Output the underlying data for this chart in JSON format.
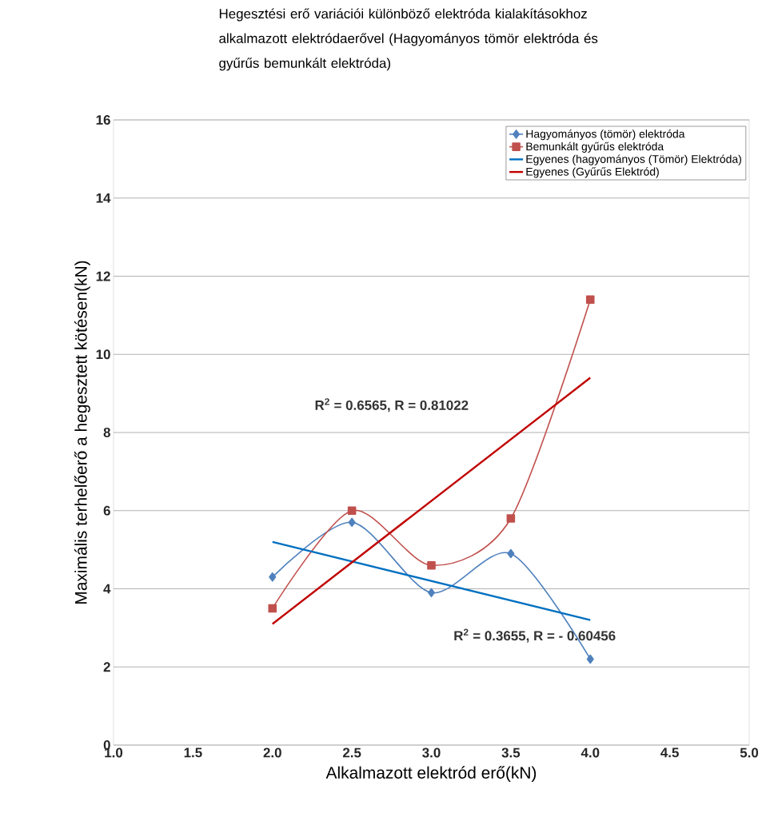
{
  "chart_data": {
    "type": "line",
    "title": "Hegesztési erő variációi különböző elektróda kialakításokhoz alkalmazott elektródaerővel (Hagyományos tömör elektróda és gyűrűs bemunkált elektróda)",
    "xlabel": "Alkalmazott elektród erő(kN)",
    "ylabel": "Maximális terhelőerő a hegesztett kötésen(kN)",
    "series": [
      {
        "name": "Hagyományos (tömör) elektróda",
        "color": "#4f81bd",
        "x": [
          2.0,
          2.5,
          3.0,
          3.5,
          4.0
        ],
        "values": [
          4.3,
          5.7,
          3.9,
          4.9,
          2.2
        ],
        "marker": "diamond"
      },
      {
        "name": "Bemunkált gyűrűs elektróda",
        "color": "#c0504d",
        "x": [
          2.0,
          2.5,
          3.0,
          3.5,
          4.0
        ],
        "values": [
          3.5,
          6.0,
          4.6,
          5.8,
          11.4
        ],
        "marker": "square"
      },
      {
        "name": "Egyenes (hagyományos (Tömör) Elektróda)",
        "color": "#0070c0",
        "x": [
          2.0,
          4.0
        ],
        "values": [
          5.2,
          3.2
        ],
        "marker": "none"
      },
      {
        "name": "Egyenes (Gyűrűs Elektród)",
        "color": "#c00000",
        "x": [
          2.0,
          4.0
        ],
        "values": [
          3.1,
          9.4
        ],
        "marker": "none"
      }
    ],
    "annotations": [
      "R$^{2}$ = 0.6565, R = 0.81022",
      "R$^{2}$ = 0.3655,   R = - 0.60456"
    ],
    "xlim": [
      1.0,
      5.0
    ],
    "xticks": [
      {
        "value": 1.0,
        "label": "1.0"
      },
      {
        "value": 1.5,
        "label": "1.5"
      },
      {
        "value": 2.0,
        "label": "2.0"
      },
      {
        "value": 2.5,
        "label": "2.5"
      },
      {
        "value": 3.0,
        "label": "3.0"
      },
      {
        "value": 3.5,
        "label": "3.5"
      },
      {
        "value": 4.0,
        "label": "4.0"
      },
      {
        "value": 4.5,
        "label": "4.5"
      },
      {
        "value": 5.0,
        "label": "5.0"
      }
    ],
    "ylim": [
      0,
      16
    ],
    "yticks": [
      0,
      2,
      4,
      6,
      8,
      10,
      12,
      14,
      16
    ],
    "grid": "y",
    "legend": "top right"
  }
}
